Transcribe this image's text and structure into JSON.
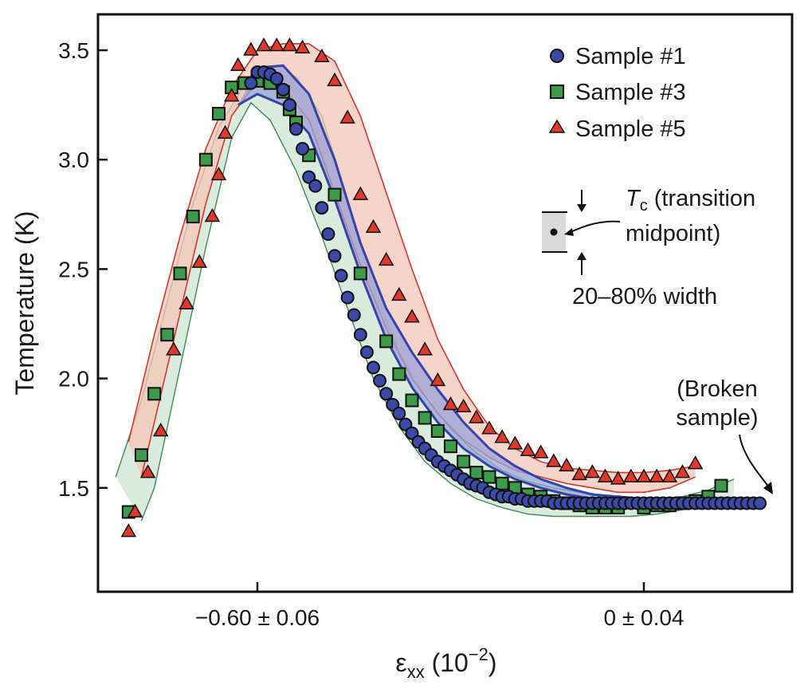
{
  "chart_data": {
    "type": "scatter",
    "ylabel": "Temperature (K)",
    "xlabel_main": "ε",
    "xlabel_sub": "xx",
    "xlabel_unit_open": " (10",
    "xlabel_unit_exp": "−2",
    "xlabel_unit_close": ")",
    "ylim": [
      1.0,
      3.65
    ],
    "xlim": [
      -0.82,
      0.19
    ],
    "yticks": [
      1.5,
      2.0,
      2.5,
      3.0,
      3.5
    ],
    "ytick_labels": [
      "1.5",
      "2.0",
      "2.5",
      "3.0",
      "3.5"
    ],
    "xticks": [
      {
        "value": -0.6,
        "label": "−0.60 ± 0.06"
      },
      {
        "value": 0.0,
        "label": "0 ± 0.04"
      }
    ],
    "grid": false,
    "legend_position": "top-right",
    "colors": {
      "sample1_fill": "#3b4aa8",
      "sample3_fill": "#3d9a4a",
      "sample5_fill": "#e0392b",
      "band_red": "#f4c6b7",
      "band_green": "#cfe6d3",
      "band_blue": "#9aa3d8"
    },
    "series": [
      {
        "name": "Sample #1",
        "marker": "circle",
        "x": [
          -0.61,
          -0.6,
          -0.59,
          -0.58,
          -0.57,
          -0.56,
          -0.55,
          -0.54,
          -0.53,
          -0.52,
          -0.51,
          -0.5,
          -0.49,
          -0.48,
          -0.47,
          -0.46,
          -0.45,
          -0.44,
          -0.43,
          -0.42,
          -0.41,
          -0.4,
          -0.39,
          -0.38,
          -0.37,
          -0.36,
          -0.35,
          -0.34,
          -0.33,
          -0.32,
          -0.31,
          -0.3,
          -0.29,
          -0.28,
          -0.27,
          -0.26,
          -0.25,
          -0.24,
          -0.23,
          -0.22,
          -0.21,
          -0.2,
          -0.19,
          -0.18,
          -0.17,
          -0.16,
          -0.15,
          -0.14,
          -0.13,
          -0.12,
          -0.11,
          -0.1,
          -0.09,
          -0.08,
          -0.07,
          -0.06,
          -0.05,
          -0.04,
          -0.03,
          -0.02,
          -0.01,
          0.0,
          0.01,
          0.02,
          0.03,
          0.04,
          0.05,
          0.06,
          0.07,
          0.08,
          0.09,
          0.1,
          0.11,
          0.12,
          0.13,
          0.14,
          0.15,
          0.16,
          0.17,
          0.18
        ],
        "y": [
          3.35,
          3.4,
          3.4,
          3.39,
          3.37,
          3.32,
          3.25,
          3.14,
          3.05,
          2.92,
          2.88,
          2.78,
          2.66,
          2.56,
          2.47,
          2.37,
          2.29,
          2.2,
          2.12,
          2.05,
          1.99,
          1.93,
          1.88,
          1.84,
          1.79,
          1.75,
          1.71,
          1.68,
          1.65,
          1.62,
          1.6,
          1.58,
          1.56,
          1.54,
          1.52,
          1.51,
          1.5,
          1.48,
          1.47,
          1.46,
          1.46,
          1.45,
          1.45,
          1.44,
          1.44,
          1.44,
          1.44,
          1.43,
          1.43,
          1.43,
          1.43,
          1.43,
          1.43,
          1.43,
          1.43,
          1.43,
          1.43,
          1.43,
          1.43,
          1.43,
          1.43,
          1.43,
          1.43,
          1.43,
          1.43,
          1.43,
          1.43,
          1.43,
          1.43,
          1.43,
          1.43,
          1.43,
          1.43,
          1.43,
          1.43,
          1.43,
          1.43,
          1.43,
          1.43,
          1.43
        ]
      },
      {
        "name": "Sample #3",
        "marker": "square",
        "x": [
          -0.8,
          -0.78,
          -0.76,
          -0.74,
          -0.72,
          -0.7,
          -0.68,
          -0.66,
          -0.64,
          -0.62,
          -0.6,
          -0.58,
          -0.56,
          -0.55,
          -0.54,
          -0.52,
          -0.48,
          -0.44,
          -0.4,
          -0.38,
          -0.36,
          -0.34,
          -0.32,
          -0.3,
          -0.28,
          -0.26,
          -0.24,
          -0.22,
          -0.2,
          -0.18,
          -0.16,
          -0.14,
          -0.12,
          -0.1,
          -0.08,
          -0.06,
          -0.04,
          0.0,
          0.02,
          0.04,
          0.06,
          0.08,
          0.1,
          0.12
        ],
        "y": [
          1.39,
          1.65,
          1.93,
          2.2,
          2.48,
          2.74,
          3.0,
          3.21,
          3.33,
          3.35,
          3.36,
          3.35,
          3.31,
          3.23,
          3.17,
          3.02,
          2.84,
          2.48,
          2.17,
          2.02,
          1.9,
          1.82,
          1.76,
          1.69,
          1.62,
          1.57,
          1.55,
          1.52,
          1.5,
          1.47,
          1.46,
          1.44,
          1.43,
          1.42,
          1.41,
          1.41,
          1.41,
          1.41,
          1.42,
          1.42,
          1.43,
          1.44,
          1.46,
          1.51
        ]
      },
      {
        "name": "Sample #5",
        "marker": "triangle",
        "x": [
          -0.8,
          -0.79,
          -0.77,
          -0.75,
          -0.73,
          -0.71,
          -0.69,
          -0.67,
          -0.66,
          -0.65,
          -0.64,
          -0.63,
          -0.61,
          -0.59,
          -0.57,
          -0.55,
          -0.53,
          -0.5,
          -0.48,
          -0.46,
          -0.44,
          -0.42,
          -0.4,
          -0.38,
          -0.36,
          -0.34,
          -0.32,
          -0.3,
          -0.28,
          -0.26,
          -0.24,
          -0.22,
          -0.2,
          -0.18,
          -0.16,
          -0.14,
          -0.12,
          -0.1,
          -0.08,
          -0.06,
          -0.04,
          -0.02,
          0.0,
          0.02,
          0.04,
          0.06,
          0.08
        ],
        "y": [
          1.3,
          1.39,
          1.57,
          1.76,
          2.13,
          2.34,
          2.53,
          2.74,
          2.93,
          3.12,
          3.29,
          3.43,
          3.5,
          3.52,
          3.52,
          3.52,
          3.51,
          3.47,
          3.36,
          3.19,
          2.84,
          2.69,
          2.54,
          2.38,
          2.28,
          2.13,
          1.99,
          1.88,
          1.87,
          1.82,
          1.77,
          1.73,
          1.7,
          1.67,
          1.66,
          1.62,
          1.6,
          1.56,
          1.57,
          1.55,
          1.54,
          1.55,
          1.55,
          1.55,
          1.55,
          1.57,
          1.61
        ]
      }
    ],
    "bands": [
      {
        "color": "red",
        "upper": [
          [
            -0.8,
            1.71
          ],
          [
            -0.76,
            2.2
          ],
          [
            -0.72,
            2.65
          ],
          [
            -0.68,
            3.05
          ],
          [
            -0.64,
            3.33
          ],
          [
            -0.6,
            3.5
          ],
          [
            -0.56,
            3.53
          ],
          [
            -0.52,
            3.53
          ],
          [
            -0.48,
            3.45
          ],
          [
            -0.44,
            3.2
          ],
          [
            -0.4,
            2.85
          ],
          [
            -0.36,
            2.5
          ],
          [
            -0.32,
            2.18
          ],
          [
            -0.28,
            1.95
          ],
          [
            -0.24,
            1.78
          ],
          [
            -0.2,
            1.68
          ],
          [
            -0.16,
            1.62
          ],
          [
            -0.12,
            1.59
          ],
          [
            -0.08,
            1.58
          ],
          [
            -0.04,
            1.57
          ],
          [
            0.0,
            1.57
          ],
          [
            0.04,
            1.58
          ],
          [
            0.08,
            1.6
          ]
        ],
        "lower": [
          [
            0.08,
            1.55
          ],
          [
            0.04,
            1.5
          ],
          [
            0.0,
            1.48
          ],
          [
            -0.04,
            1.48
          ],
          [
            -0.08,
            1.5
          ],
          [
            -0.12,
            1.52
          ],
          [
            -0.16,
            1.55
          ],
          [
            -0.2,
            1.58
          ],
          [
            -0.24,
            1.64
          ],
          [
            -0.28,
            1.72
          ],
          [
            -0.32,
            1.84
          ],
          [
            -0.36,
            2.0
          ],
          [
            -0.4,
            2.23
          ],
          [
            -0.44,
            2.52
          ],
          [
            -0.48,
            2.85
          ],
          [
            -0.52,
            3.18
          ],
          [
            -0.56,
            3.33
          ],
          [
            -0.6,
            3.36
          ],
          [
            -0.64,
            3.2
          ],
          [
            -0.68,
            2.8
          ],
          [
            -0.72,
            2.3
          ],
          [
            -0.76,
            1.8
          ],
          [
            -0.78,
            1.55
          ]
        ]
      },
      {
        "color": "green",
        "upper": [
          [
            -0.82,
            1.55
          ],
          [
            -0.78,
            1.9
          ],
          [
            -0.74,
            2.35
          ],
          [
            -0.7,
            2.8
          ],
          [
            -0.66,
            3.15
          ],
          [
            -0.62,
            3.34
          ],
          [
            -0.58,
            3.39
          ],
          [
            -0.54,
            3.38
          ],
          [
            -0.5,
            3.2
          ],
          [
            -0.46,
            2.82
          ],
          [
            -0.42,
            2.42
          ],
          [
            -0.38,
            2.12
          ],
          [
            -0.34,
            1.92
          ],
          [
            -0.3,
            1.77
          ],
          [
            -0.26,
            1.66
          ],
          [
            -0.22,
            1.58
          ],
          [
            -0.18,
            1.53
          ],
          [
            -0.14,
            1.5
          ],
          [
            -0.1,
            1.48
          ],
          [
            -0.06,
            1.46
          ],
          [
            -0.02,
            1.45
          ],
          [
            0.02,
            1.45
          ],
          [
            0.06,
            1.46
          ],
          [
            0.1,
            1.49
          ],
          [
            0.14,
            1.54
          ]
        ],
        "lower": [
          [
            0.14,
            1.45
          ],
          [
            0.1,
            1.43
          ],
          [
            0.06,
            1.4
          ],
          [
            0.02,
            1.38
          ],
          [
            -0.02,
            1.37
          ],
          [
            -0.06,
            1.37
          ],
          [
            -0.1,
            1.37
          ],
          [
            -0.14,
            1.37
          ],
          [
            -0.18,
            1.38
          ],
          [
            -0.22,
            1.41
          ],
          [
            -0.26,
            1.45
          ],
          [
            -0.3,
            1.52
          ],
          [
            -0.34,
            1.62
          ],
          [
            -0.38,
            1.78
          ],
          [
            -0.42,
            2.0
          ],
          [
            -0.46,
            2.32
          ],
          [
            -0.5,
            2.65
          ],
          [
            -0.54,
            2.95
          ],
          [
            -0.58,
            3.18
          ],
          [
            -0.61,
            3.26
          ],
          [
            -0.64,
            3.1
          ],
          [
            -0.68,
            2.6
          ],
          [
            -0.72,
            2.05
          ],
          [
            -0.76,
            1.5
          ],
          [
            -0.78,
            1.35
          ]
        ]
      },
      {
        "color": "blue",
        "upper": [
          [
            -0.6,
            3.42
          ],
          [
            -0.56,
            3.43
          ],
          [
            -0.52,
            3.3
          ],
          [
            -0.48,
            3.0
          ],
          [
            -0.44,
            2.62
          ],
          [
            -0.4,
            2.32
          ],
          [
            -0.36,
            2.12
          ],
          [
            -0.32,
            1.95
          ],
          [
            -0.28,
            1.8
          ],
          [
            -0.24,
            1.68
          ],
          [
            -0.2,
            1.6
          ],
          [
            -0.16,
            1.54
          ],
          [
            -0.12,
            1.5
          ],
          [
            -0.08,
            1.47
          ],
          [
            -0.04,
            1.46
          ],
          [
            0.0,
            1.45
          ]
        ],
        "lower": [
          [
            0.0,
            1.43
          ],
          [
            -0.04,
            1.44
          ],
          [
            -0.08,
            1.45
          ],
          [
            -0.12,
            1.47
          ],
          [
            -0.16,
            1.5
          ],
          [
            -0.2,
            1.54
          ],
          [
            -0.24,
            1.6
          ],
          [
            -0.28,
            1.68
          ],
          [
            -0.32,
            1.8
          ],
          [
            -0.36,
            1.96
          ],
          [
            -0.4,
            2.18
          ],
          [
            -0.44,
            2.48
          ],
          [
            -0.48,
            2.82
          ],
          [
            -0.52,
            3.12
          ],
          [
            -0.56,
            3.25
          ],
          [
            -0.6,
            3.3
          ],
          [
            -0.63,
            3.25
          ]
        ]
      }
    ],
    "annotations": {
      "tc_symbol": "T",
      "tc_sub": "c",
      "tc_text_line1": " (transition",
      "tc_text_line2": "midpoint)",
      "width_text": "20–80% width",
      "broken_line1": "(Broken",
      "broken_line2": "sample)"
    }
  }
}
